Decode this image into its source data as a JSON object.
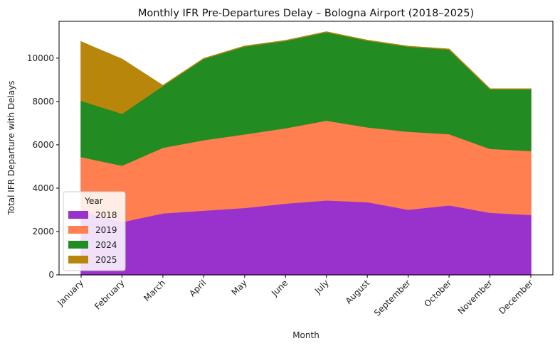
{
  "chart_data": {
    "type": "area",
    "stacked": true,
    "title": "Monthly IFR Pre-Departures Delay – Bologna Airport (2018–2025)",
    "xlabel": "Month",
    "ylabel": "Total IFR Departure with Delays",
    "categories": [
      "January",
      "February",
      "March",
      "April",
      "May",
      "June",
      "July",
      "August",
      "September",
      "October",
      "November",
      "December"
    ],
    "ylim": [
      0,
      11700
    ],
    "yticks": [
      0,
      2000,
      4000,
      6000,
      8000,
      10000
    ],
    "grid": false,
    "legend": {
      "title": "Year",
      "placement": "lower-left"
    },
    "series": [
      {
        "name": "2018",
        "color": "#9932cc",
        "values": [
          2950,
          2450,
          2850,
          2980,
          3100,
          3300,
          3450,
          3370,
          3020,
          3220,
          2880,
          2780
        ]
      },
      {
        "name": "2019",
        "color": "#ff7f50",
        "values": [
          2500,
          2600,
          3030,
          3250,
          3400,
          3480,
          3680,
          3450,
          3600,
          3290,
          2950,
          2950
        ]
      },
      {
        "name": "2024",
        "color": "#228b22",
        "values": [
          2600,
          2400,
          2850,
          3750,
          4050,
          4030,
          4080,
          4000,
          3920,
          3900,
          2750,
          2850
        ]
      },
      {
        "name": "2025",
        "color": "#b8860b",
        "values": [
          2700,
          2500,
          0,
          0,
          0,
          0,
          0,
          0,
          0,
          0,
          0,
          0
        ]
      }
    ]
  }
}
